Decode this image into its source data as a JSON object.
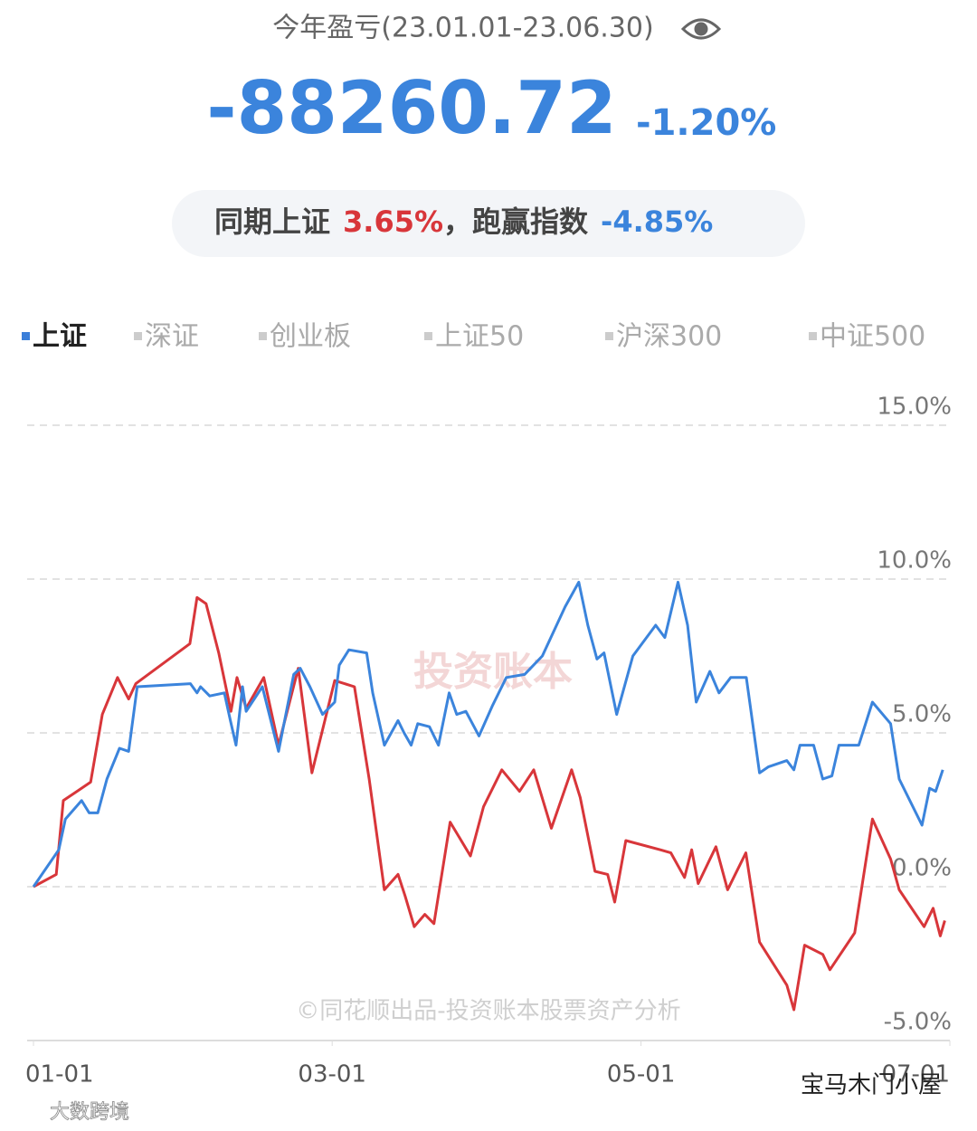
{
  "header": {
    "title": "今年盈亏(23.01.01-23.06.30)",
    "amount": "-88260.72",
    "amount_pct": "-1.20%",
    "compare": {
      "label": "同期上证",
      "index_pct": "3.65%",
      "beat_label": "，跑赢指数",
      "beat_pct": "-4.85%"
    }
  },
  "chart_data": {
    "type": "line",
    "legend": [
      {
        "name": "上证",
        "color": "#3b7fd9"
      },
      {
        "name": "深证",
        "color": "#cccccc"
      },
      {
        "name": "创业板",
        "color": "#cccccc"
      },
      {
        "name": "上证50",
        "color": "#cccccc"
      },
      {
        "name": "沪深300",
        "color": "#cccccc"
      },
      {
        "name": "中证500",
        "color": "#cccccc"
      }
    ],
    "series": [
      {
        "color": "#3b84dc",
        "x": [
          0,
          5,
          6.3,
          9.5,
          11,
          12.7,
          14.5,
          17,
          18.8,
          20.5,
          31,
          32.3,
          33,
          34.8,
          37.7,
          38.9,
          40,
          41.3,
          42,
          45.2,
          48.4,
          51.4,
          52.7,
          54.6,
          57.1,
          59.5,
          60.4,
          62.3,
          65.8,
          67,
          69.3,
          72,
          73.2,
          74.6,
          75.9,
          78.2,
          80,
          82.1,
          83.6,
          85.4,
          88,
          90.7,
          93.4,
          97,
          100.5,
          105,
          107.7,
          109.5,
          111.3,
          112.7,
          115.2,
          118.4,
          122.9,
          124.7,
          127.3,
          129.2,
          130.9,
          133.6,
          135.4,
          137.7,
          140.8,
          143.4,
          145.2,
          148.8,
          150.2,
          151.4,
          154.1,
          155.9,
          157.7,
          159.1,
          163,
          165.7,
          169.3,
          171,
          175.5,
          177,
          178.2,
          179.6
        ],
        "values": [
          0,
          1.2,
          2.2,
          2.8,
          2.4,
          2.4,
          3.5,
          4.5,
          4.4,
          6.5,
          6.6,
          6.3,
          6.5,
          6.2,
          6.3,
          5.4,
          4.6,
          6.5,
          5.7,
          6.5,
          4.4,
          6.9,
          7.1,
          6.5,
          5.6,
          6.0,
          7.2,
          7.7,
          7.6,
          6.3,
          4.6,
          5.4,
          5.0,
          4.6,
          5.3,
          5.2,
          4.6,
          6.3,
          5.6,
          5.7,
          4.9,
          5.9,
          6.8,
          6.9,
          7.5,
          9.1,
          9.9,
          8.5,
          7.4,
          7.6,
          5.6,
          7.5,
          8.5,
          8.1,
          9.9,
          8.5,
          6.0,
          7.0,
          6.3,
          6.8,
          6.8,
          3.7,
          3.9,
          4.1,
          3.8,
          4.6,
          4.6,
          3.5,
          3.6,
          4.6,
          4.6,
          6.0,
          5.3,
          3.5,
          2.0,
          3.2,
          3.1,
          3.8
        ]
      },
      {
        "color": "#d8363a",
        "x": [
          0,
          4.5,
          5.9,
          8.6,
          11.3,
          13.6,
          16.6,
          18.8,
          20.2,
          30.9,
          32.3,
          34.1,
          36.6,
          39,
          40.2,
          42,
          45.5,
          48.4,
          52.3,
          55,
          59.5,
          63.4,
          66.3,
          69.3,
          72,
          73.4,
          75.2,
          77.3,
          79.1,
          82.3,
          86.3,
          88.9,
          92.5,
          96,
          98.8,
          102.3,
          106.3,
          108,
          110.9,
          113.4,
          114.8,
          117,
          123.8,
          125.9,
          128.6,
          130,
          131.3,
          134.8,
          137.1,
          140.7,
          143.4,
          148.8,
          150.2,
          152.3,
          155.9,
          157.3,
          162.2,
          165.7,
          169.3,
          171,
          175.9,
          177.7,
          179.1,
          180
        ],
        "values": [
          0,
          0.4,
          2.8,
          3.1,
          3.4,
          5.6,
          6.8,
          6.1,
          6.6,
          7.9,
          9.4,
          9.2,
          7.6,
          5.7,
          6.8,
          5.8,
          6.8,
          4.6,
          7.1,
          3.7,
          6.7,
          6.5,
          3.5,
          -0.1,
          0.4,
          -0.3,
          -1.3,
          -0.9,
          -1.2,
          2.1,
          1.0,
          2.6,
          3.8,
          3.1,
          3.8,
          1.9,
          3.8,
          2.9,
          0.5,
          0.4,
          -0.5,
          1.5,
          1.2,
          1.1,
          0.3,
          1.2,
          0.1,
          1.3,
          -0.1,
          1.1,
          -1.8,
          -3.2,
          -4.0,
          -1.9,
          -2.2,
          -2.7,
          -1.5,
          2.2,
          0.9,
          -0.1,
          -1.3,
          -0.7,
          -1.6,
          -1.1
        ]
      }
    ],
    "xlim": [
      0,
      181
    ],
    "xticks": [
      {
        "value": 0,
        "label": "01-01"
      },
      {
        "value": 59,
        "label": "03-01"
      },
      {
        "value": 120,
        "label": "05-01"
      },
      {
        "value": 181,
        "label": "07-01"
      }
    ],
    "ylim": [
      -5,
      15
    ],
    "yticks": [
      {
        "value": 15,
        "label": "15.0%"
      },
      {
        "value": 10,
        "label": "10.0%"
      },
      {
        "value": 5,
        "label": "5.0%"
      },
      {
        "value": 0,
        "label": "0.0%"
      },
      {
        "value": -5,
        "label": "-5.0%"
      }
    ],
    "grid": true
  },
  "watermarks": {
    "logo": "投资账本",
    "credit": "©同花顺出品-投资账本股票资产分析",
    "left_corner": "大数跨境",
    "right_corner": "宝马木门小屋"
  }
}
